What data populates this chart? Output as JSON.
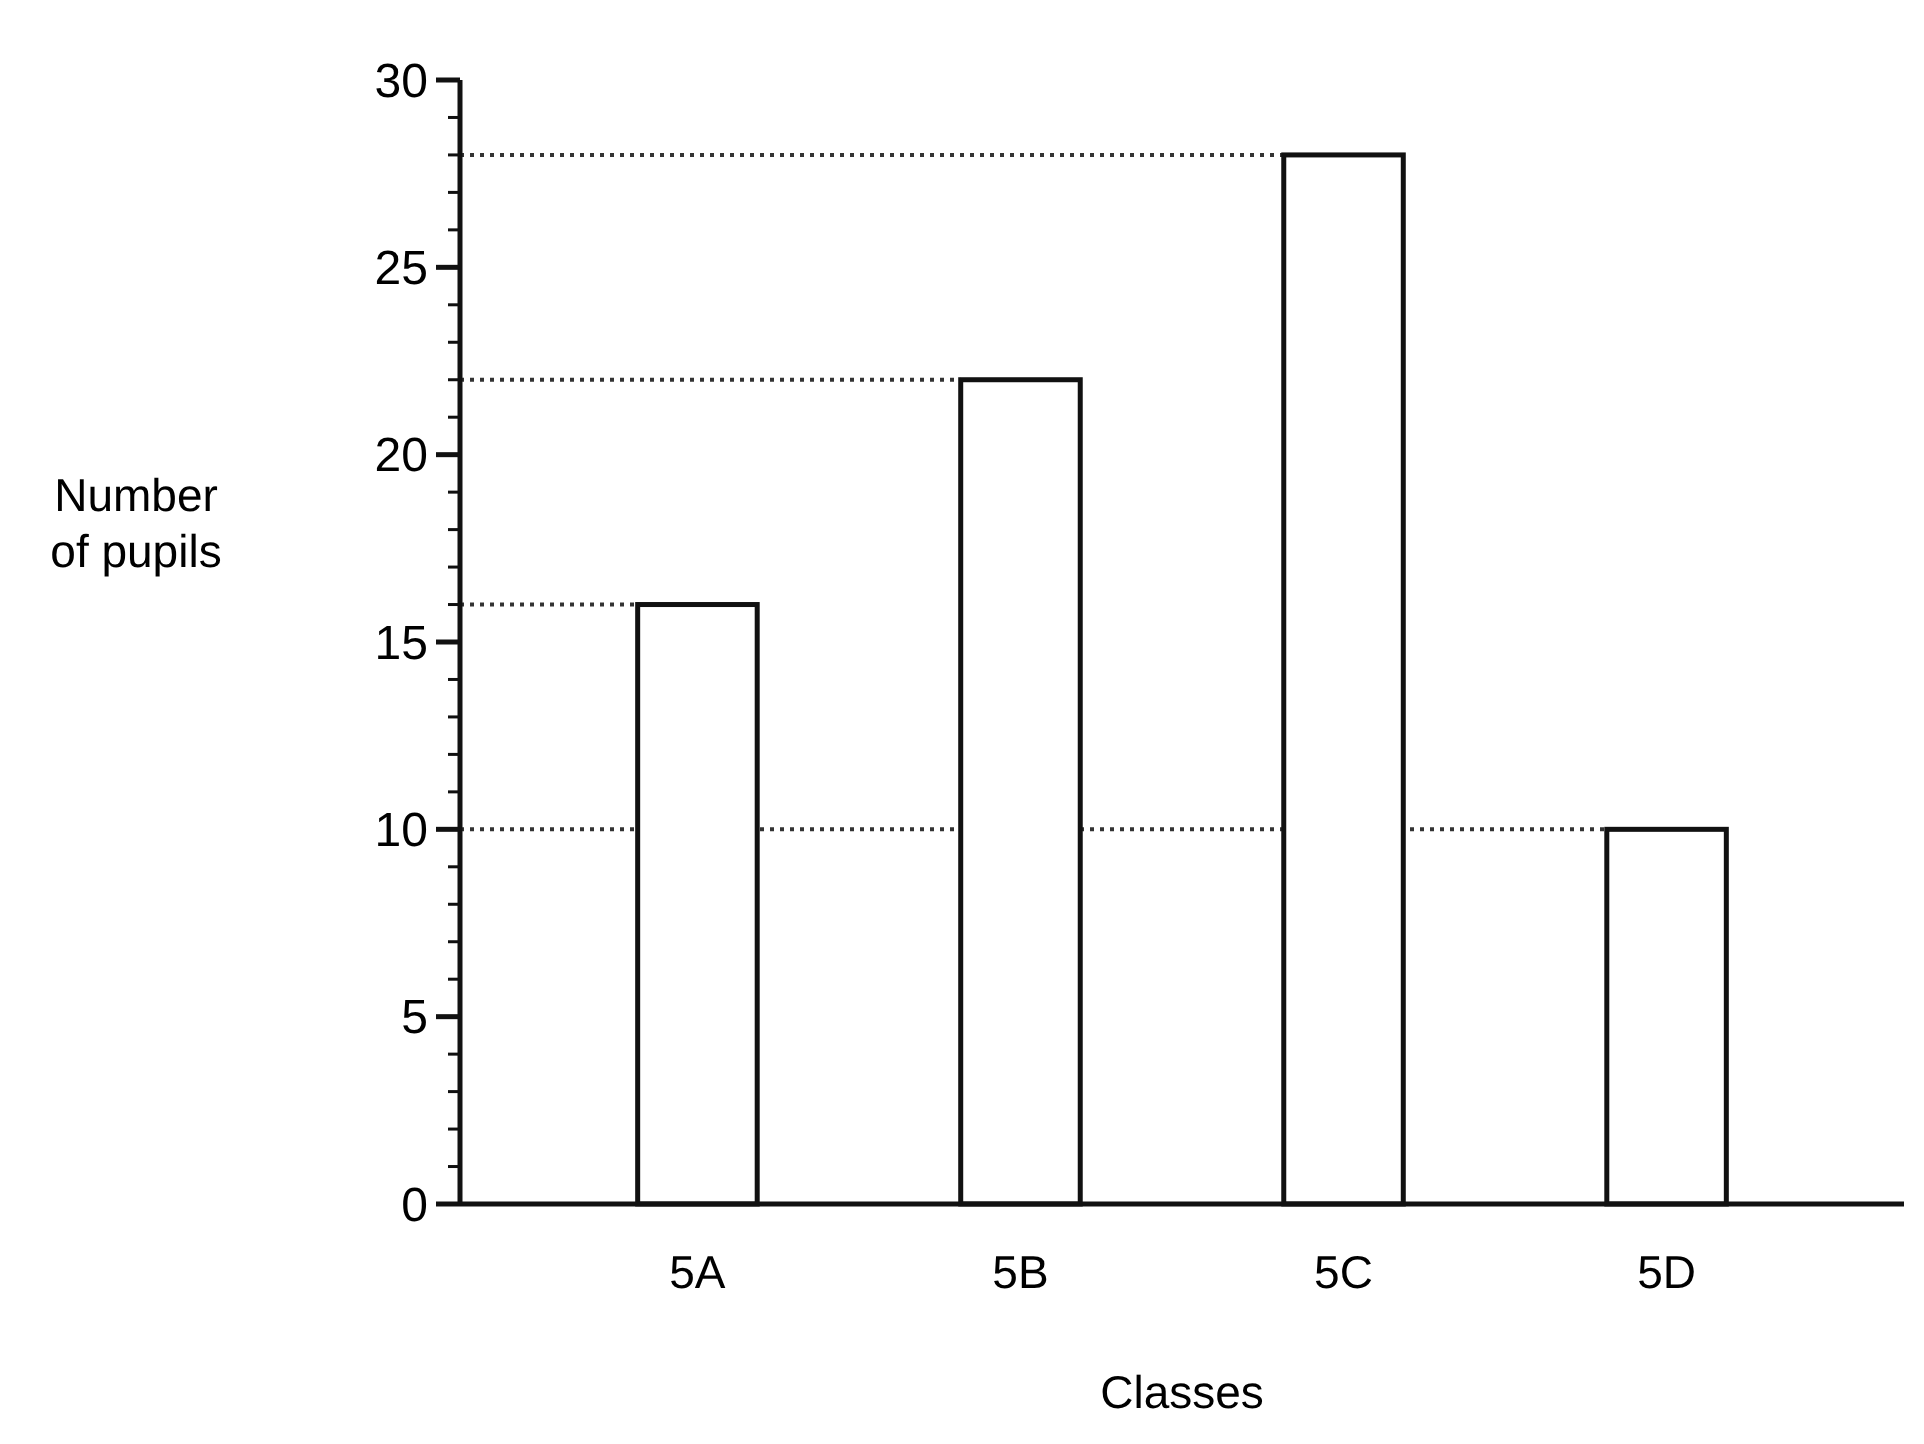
{
  "chart_data": {
    "type": "bar",
    "xlabel": "Classes",
    "ylabel": "Number\nof pupils",
    "categories": [
      "5A",
      "5B",
      "5C",
      "5D"
    ],
    "values": [
      16,
      22,
      28,
      10
    ],
    "color": "#ffffff",
    "ylim": [
      0,
      30
    ],
    "yticks": [
      0,
      5,
      10,
      15,
      20,
      25,
      30,
      {
        "value": 1,
        "label": null
      },
      {
        "value": 2,
        "label": null
      },
      {
        "value": 3,
        "label": null
      },
      {
        "value": 4,
        "label": null
      },
      {
        "value": 6,
        "label": null
      },
      {
        "value": 7,
        "label": null
      },
      {
        "value": 8,
        "label": null
      },
      {
        "value": 9,
        "label": null
      },
      {
        "value": 11,
        "label": null
      },
      {
        "value": 12,
        "label": null
      },
      {
        "value": 13,
        "label": null
      },
      {
        "value": 14,
        "label": null
      },
      {
        "value": 16,
        "label": null
      },
      {
        "value": 17,
        "label": null
      },
      {
        "value": 18,
        "label": null
      },
      {
        "value": 19,
        "label": null
      },
      {
        "value": 21,
        "label": null
      },
      {
        "value": 22,
        "label": null
      },
      {
        "value": 23,
        "label": null
      },
      {
        "value": 24,
        "label": null
      },
      {
        "value": 26,
        "label": null
      },
      {
        "value": 27,
        "label": null
      },
      {
        "value": 28,
        "label": null
      },
      {
        "value": 29,
        "label": null
      }
    ],
    "ref_lines": [
      {
        "axis": "y",
        "value": 28,
        "line_style": "dotted"
      },
      {
        "axis": "y",
        "value": 22,
        "line_style": "dotted"
      },
      {
        "axis": "y",
        "value": 16,
        "line_style": "dotted"
      },
      {
        "axis": "y",
        "value": 10,
        "line_style": "dotted"
      }
    ],
    "grid": false
  }
}
